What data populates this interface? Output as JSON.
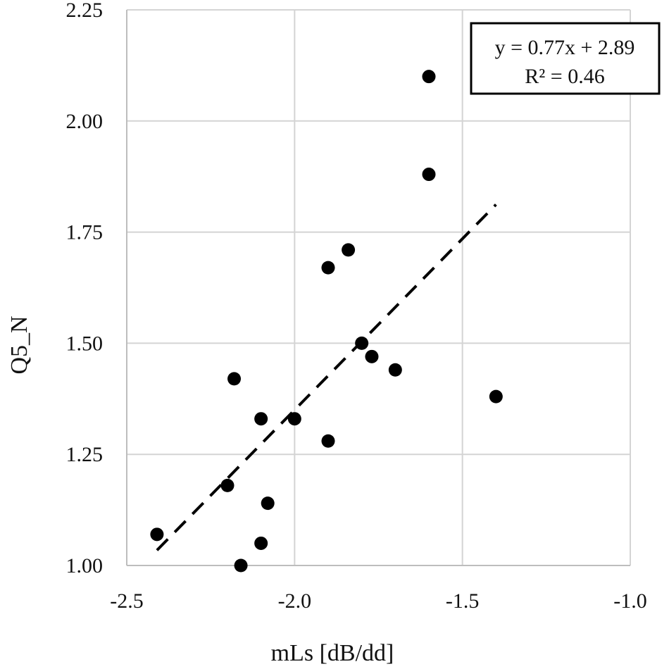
{
  "chart_data": {
    "type": "scatter",
    "xlabel": "mLs [dB/dd]",
    "ylabel": "Q5_N",
    "xlim": [
      -2.5,
      -1.0
    ],
    "ylim": [
      1.0,
      2.25
    ],
    "x_ticks": [
      -2.5,
      -2.0,
      -1.5,
      -1.0
    ],
    "x_tick_labels": [
      "-2.5",
      "-2.0",
      "-1.5",
      "-1.0"
    ],
    "y_ticks": [
      1.0,
      1.25,
      1.5,
      1.75,
      2.0,
      2.25
    ],
    "y_tick_labels": [
      "1.00",
      "1.25",
      "1.50",
      "1.75",
      "2.00",
      "2.25"
    ],
    "grid": true,
    "points": [
      {
        "x": -2.41,
        "y": 1.07
      },
      {
        "x": -2.2,
        "y": 1.18
      },
      {
        "x": -2.18,
        "y": 1.42
      },
      {
        "x": -2.16,
        "y": 1.0
      },
      {
        "x": -2.1,
        "y": 1.05
      },
      {
        "x": -2.1,
        "y": 1.33
      },
      {
        "x": -2.08,
        "y": 1.14
      },
      {
        "x": -2.0,
        "y": 1.33
      },
      {
        "x": -1.9,
        "y": 1.67
      },
      {
        "x": -1.9,
        "y": 1.28
      },
      {
        "x": -1.84,
        "y": 1.71
      },
      {
        "x": -1.8,
        "y": 1.5
      },
      {
        "x": -1.77,
        "y": 1.47
      },
      {
        "x": -1.7,
        "y": 1.44
      },
      {
        "x": -1.6,
        "y": 2.1
      },
      {
        "x": -1.6,
        "y": 1.88
      },
      {
        "x": -1.4,
        "y": 1.38
      }
    ],
    "trendline": {
      "slope": 0.77,
      "intercept": 2.89,
      "x_range": [
        -2.41,
        -1.4
      ],
      "style": "dashed"
    },
    "annotation": {
      "equation": "y = 0.77x + 2.89",
      "r_squared": "R² = 0.46",
      "position": "top-right"
    }
  }
}
